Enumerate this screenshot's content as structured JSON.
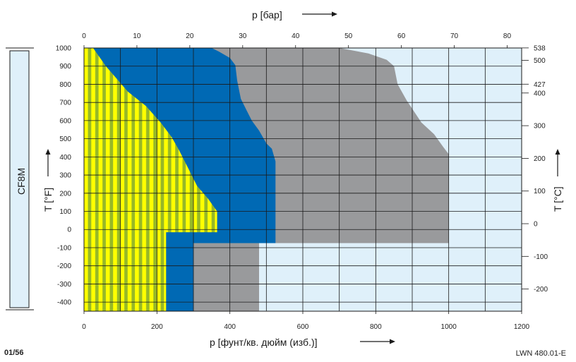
{
  "page_number": "01/56",
  "document_code": "LWN 480.01-E",
  "material_label": "CF8M",
  "colors": {
    "yellow": "#ffff00",
    "stripe": "#96b828",
    "blue": "#0069b4",
    "gray": "#999a9c",
    "light": "#dff0fa",
    "grid": "#1a1a1a"
  },
  "chart_data": {
    "type": "area",
    "title_top": "p [бар]",
    "title_bottom": "p [фунт/кв. дюйм (изб.)]",
    "ylabel_left": "T [°F]",
    "ylabel_right": "T [°C]",
    "x_psi_range": [
      0,
      1200
    ],
    "x_psi_ticks": [
      0,
      200,
      400,
      600,
      800,
      1000,
      1200
    ],
    "x_bar_ticks": [
      0,
      10,
      20,
      30,
      40,
      50,
      60,
      70,
      80
    ],
    "y_f_range": [
      -450,
      1000
    ],
    "y_f_ticks": [
      1000,
      900,
      800,
      700,
      600,
      500,
      400,
      300,
      200,
      100,
      0,
      -100,
      -200,
      -300,
      -400
    ],
    "y_c_ticks": [
      538,
      500,
      427,
      400,
      300,
      200,
      100,
      0,
      -100,
      -200
    ],
    "regions": [
      {
        "color_key": "light",
        "points": [
          [
            0,
            1000
          ],
          [
            1200,
            1000
          ],
          [
            1200,
            -450
          ],
          [
            0,
            -450
          ]
        ]
      },
      {
        "color_key": "gray",
        "points": [
          [
            0,
            1000
          ],
          [
            700,
            1000
          ],
          [
            780,
            970
          ],
          [
            830,
            935
          ],
          [
            850,
            900
          ],
          [
            860,
            800
          ],
          [
            885,
            710
          ],
          [
            905,
            650
          ],
          [
            925,
            590
          ],
          [
            960,
            525
          ],
          [
            985,
            455
          ],
          [
            1000,
            415
          ],
          [
            1000,
            -75
          ],
          [
            480,
            -75
          ],
          [
            480,
            -450
          ],
          [
            0,
            -450
          ]
        ]
      },
      {
        "color_key": "blue",
        "points": [
          [
            0,
            1000
          ],
          [
            350,
            1000
          ],
          [
            370,
            980
          ],
          [
            400,
            945
          ],
          [
            415,
            905
          ],
          [
            420,
            820
          ],
          [
            430,
            720
          ],
          [
            445,
            660
          ],
          [
            460,
            600
          ],
          [
            480,
            545
          ],
          [
            500,
            475
          ],
          [
            515,
            445
          ],
          [
            525,
            375
          ],
          [
            525,
            -75
          ],
          [
            300,
            -75
          ],
          [
            300,
            -450
          ],
          [
            0,
            -450
          ]
        ]
      },
      {
        "color_key": "yellow",
        "points": [
          [
            0,
            1000
          ],
          [
            25,
            1000
          ],
          [
            60,
            900
          ],
          [
            90,
            830
          ],
          [
            120,
            760
          ],
          [
            170,
            680
          ],
          [
            210,
            590
          ],
          [
            240,
            510
          ],
          [
            260,
            440
          ],
          [
            285,
            340
          ],
          [
            310,
            240
          ],
          [
            340,
            170
          ],
          [
            365,
            100
          ],
          [
            365,
            -15
          ],
          [
            225,
            -15
          ],
          [
            225,
            -450
          ],
          [
            0,
            -450
          ]
        ],
        "striped": true
      }
    ]
  }
}
